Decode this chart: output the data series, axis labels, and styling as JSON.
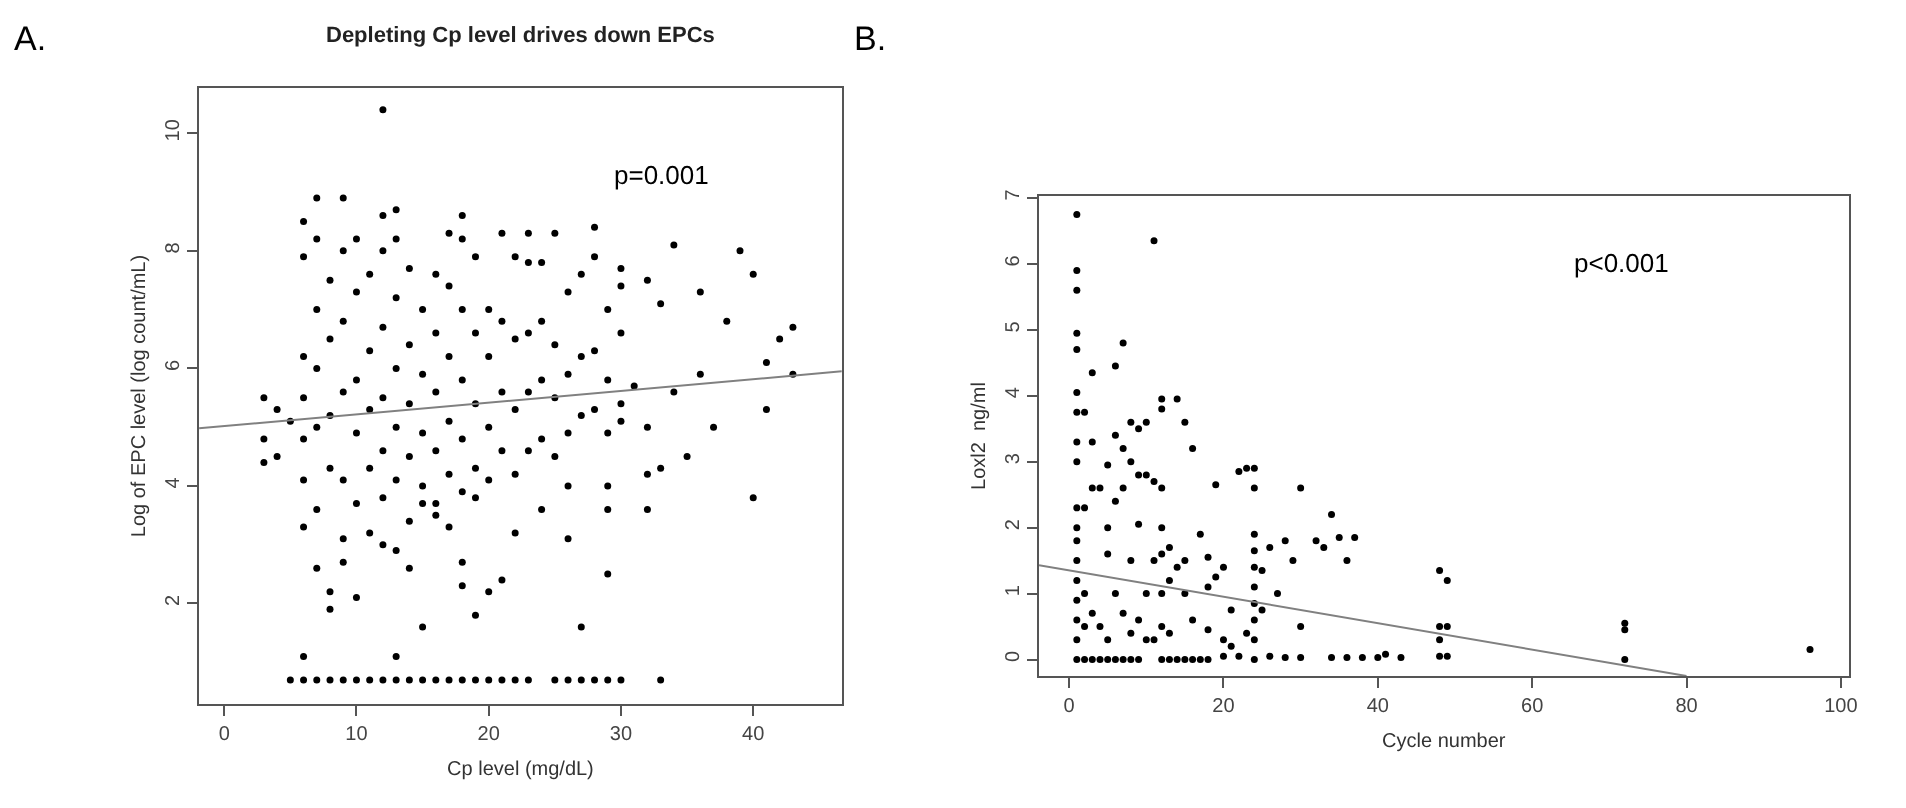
{
  "chart_data": [
    {
      "type": "scatter",
      "title": "Depleting Cp level drives down EPCs",
      "xlabel": "Cp level (mg/dL)",
      "ylabel": "Log of EPC level (log count/mL)",
      "annotations": [
        "A.",
        "p=0.001"
      ],
      "xlim": [
        -1.9,
        46.7
      ],
      "ylim": [
        0.29,
        10.77
      ],
      "xticks": [
        0,
        10,
        20,
        30,
        40
      ],
      "yticks": [
        2,
        4,
        6,
        8,
        10
      ],
      "series": [
        {
          "marker": "circle",
          "color": "#000000",
          "x": [
            5,
            6,
            7,
            8,
            9,
            10,
            11,
            12,
            13,
            14,
            15,
            16,
            17,
            18,
            19,
            20,
            21,
            22,
            23,
            25,
            26,
            27,
            28,
            29,
            30,
            33,
            12,
            6,
            13,
            15,
            27,
            19,
            8,
            8,
            10,
            20,
            21,
            18,
            29,
            7,
            9,
            18,
            14,
            13,
            3,
            3,
            4,
            3,
            4,
            5,
            40,
            32,
            33,
            35,
            37,
            41,
            41,
            43,
            43,
            42,
            40,
            39,
            34,
            38,
            36,
            32,
            33,
            30,
            28,
            9,
            7,
            13,
            18,
            12,
            6,
            25,
            21,
            23,
            36,
            34,
            31,
            32,
            30,
            32,
            26,
            24,
            22,
            29,
            26,
            29,
            6,
            6,
            7,
            9,
            11,
            12,
            14,
            16,
            17,
            19,
            15,
            6,
            6,
            6,
            6,
            7,
            7,
            7,
            7,
            8,
            8,
            8,
            8,
            9,
            9,
            9,
            9,
            10,
            10,
            10,
            10,
            10,
            11,
            11,
            11,
            11,
            12,
            12,
            12,
            12,
            12,
            13,
            13,
            13,
            13,
            13,
            14,
            14,
            14,
            14,
            15,
            15,
            15,
            15,
            16,
            16,
            16,
            16,
            16,
            17,
            17,
            17,
            17,
            17,
            18,
            18,
            18,
            18,
            18,
            19,
            19,
            19,
            19,
            20,
            20,
            20,
            20,
            21,
            21,
            21,
            22,
            22,
            22,
            22,
            23,
            23,
            23,
            23,
            24,
            24,
            24,
            24,
            25,
            25,
            25,
            26,
            26,
            26,
            27,
            27,
            27,
            28,
            28,
            28,
            29,
            29,
            29,
            30,
            30,
            30
          ],
          "values": [
            0.7,
            0.7,
            0.7,
            0.7,
            0.7,
            0.7,
            0.7,
            0.7,
            0.7,
            0.7,
            0.7,
            0.7,
            0.7,
            0.7,
            0.7,
            0.7,
            0.7,
            0.7,
            0.7,
            0.7,
            0.7,
            0.7,
            0.7,
            0.7,
            0.7,
            0.7,
            10.4,
            1.1,
            1.1,
            1.6,
            1.6,
            1.8,
            1.9,
            2.2,
            2.1,
            2.2,
            2.4,
            2.3,
            2.5,
            2.6,
            2.7,
            2.7,
            2.6,
            2.9,
            4.4,
            4.8,
            4.5,
            5.5,
            5.3,
            5.1,
            3.8,
            3.6,
            4.3,
            4.5,
            5.0,
            5.3,
            6.1,
            5.9,
            6.7,
            6.5,
            7.6,
            8.0,
            8.1,
            6.8,
            7.3,
            7.5,
            7.1,
            7.4,
            8.4,
            8.9,
            8.9,
            8.7,
            8.6,
            8.6,
            8.5,
            8.3,
            8.3,
            8.3,
            5.9,
            5.6,
            5.7,
            5.0,
            5.1,
            4.2,
            3.1,
            3.6,
            3.2,
            3.6,
            4.0,
            4.0,
            3.3,
            4.1,
            3.6,
            3.1,
            3.2,
            3.0,
            3.4,
            3.5,
            3.3,
            3.8,
            3.7,
            4.8,
            5.5,
            6.2,
            7.9,
            5.0,
            6.0,
            7.0,
            8.2,
            4.3,
            5.2,
            6.5,
            7.5,
            4.1,
            5.6,
            6.8,
            8.0,
            3.7,
            4.9,
            5.8,
            7.3,
            8.2,
            4.3,
            5.3,
            6.3,
            7.6,
            3.8,
            4.6,
            5.5,
            6.7,
            8.0,
            4.1,
            5.0,
            6.0,
            7.2,
            8.2,
            4.5,
            5.4,
            6.4,
            7.7,
            4.0,
            4.9,
            5.9,
            7.0,
            3.7,
            4.6,
            5.6,
            6.6,
            7.6,
            4.2,
            5.1,
            6.2,
            7.4,
            8.3,
            3.9,
            4.8,
            5.8,
            7.0,
            8.2,
            4.3,
            5.4,
            6.6,
            7.9,
            4.1,
            5.0,
            6.2,
            7.0,
            4.6,
            5.6,
            6.8,
            4.2,
            5.3,
            6.5,
            7.9,
            4.6,
            5.6,
            6.6,
            7.8,
            4.8,
            5.8,
            6.8,
            7.8,
            4.5,
            5.5,
            6.4,
            4.9,
            5.9,
            7.3,
            5.2,
            6.2,
            7.6,
            5.3,
            6.3,
            7.9,
            4.9,
            5.8,
            7.0,
            5.4,
            6.6,
            7.7
          ]
        },
        {
          "type": "line",
          "marker": "none",
          "color": "#808080",
          "x": [
            -1.9,
            46.7
          ],
          "values": [
            4.98,
            5.95
          ]
        }
      ]
    },
    {
      "type": "scatter",
      "xlabel": "Cycle number",
      "ylabel": "Loxl2  ng/ml",
      "annotations": [
        "B.",
        "p<0.001"
      ],
      "xlim": [
        -3.9,
        101
      ],
      "ylim": [
        -0.25,
        7.03
      ],
      "xticks": [
        0,
        20,
        40,
        60,
        80,
        100
      ],
      "yticks": [
        0,
        1,
        2,
        3,
        4,
        5,
        6,
        7
      ],
      "series": [
        {
          "marker": "circle",
          "color": "#000000",
          "x": [
            1,
            1,
            1,
            1,
            1,
            1,
            1,
            1,
            1,
            1,
            1,
            1,
            1,
            1,
            1,
            1,
            1,
            1,
            2,
            2,
            2,
            2,
            2,
            3,
            3,
            3,
            3,
            3,
            4,
            4,
            4,
            5,
            5,
            5,
            5,
            5,
            6,
            6,
            6,
            6,
            6,
            7,
            7,
            7,
            7,
            7,
            8,
            8,
            8,
            8,
            8,
            9,
            9,
            9,
            9,
            9,
            10,
            10,
            10,
            10,
            11,
            11,
            11,
            11,
            12,
            12,
            12,
            12,
            12,
            12,
            12,
            12,
            13,
            13,
            13,
            13,
            14,
            14,
            14,
            15,
            15,
            15,
            15,
            16,
            16,
            16,
            17,
            17,
            18,
            18,
            18,
            18,
            19,
            19,
            20,
            20,
            20,
            21,
            21,
            22,
            22,
            23,
            23,
            24,
            24,
            24,
            24,
            24,
            24,
            24,
            24,
            24,
            24,
            25,
            25,
            26,
            26,
            27,
            28,
            28,
            29,
            30,
            30,
            30,
            32,
            33,
            34,
            34,
            35,
            36,
            36,
            37,
            38,
            40,
            41,
            43,
            48,
            48,
            48,
            48,
            49,
            49,
            49,
            72,
            72,
            72,
            96
          ],
          "values": [
            6.75,
            5.9,
            5.6,
            4.95,
            4.7,
            4.05,
            3.75,
            3.3,
            3.0,
            2.3,
            2.0,
            1.8,
            1.5,
            1.2,
            0.9,
            0.6,
            0.3,
            0,
            3.75,
            2.3,
            1.0,
            0.5,
            0,
            4.35,
            3.3,
            2.6,
            0.7,
            0,
            2.6,
            0.5,
            0,
            2.95,
            2.0,
            1.6,
            0.3,
            0,
            4.45,
            3.4,
            2.4,
            1.0,
            0,
            4.8,
            3.2,
            2.6,
            0.7,
            0,
            3.6,
            3.0,
            1.5,
            0.4,
            0,
            3.5,
            2.8,
            2.05,
            0.6,
            0,
            3.6,
            2.8,
            1.0,
            0.3,
            6.35,
            2.7,
            1.5,
            0.3,
            3.95,
            3.8,
            2.6,
            2.0,
            1.6,
            1.0,
            0.5,
            0,
            1.7,
            1.2,
            0.4,
            0,
            3.95,
            1.4,
            0,
            3.6,
            1.5,
            1.0,
            0,
            3.2,
            0.6,
            0,
            1.9,
            0,
            1.55,
            1.1,
            0.45,
            0,
            2.65,
            1.25,
            1.4,
            0.3,
            0.05,
            0.75,
            0.2,
            2.85,
            0.05,
            2.9,
            0.4,
            2.9,
            2.6,
            1.9,
            1.65,
            1.4,
            1.1,
            0.85,
            0.6,
            0.3,
            0,
            1.35,
            0.75,
            1.7,
            0.05,
            1.0,
            1.8,
            0.03,
            1.5,
            2.6,
            0.5,
            0.03,
            1.8,
            1.7,
            2.2,
            0.03,
            1.85,
            1.5,
            0.03,
            1.85,
            0.03,
            0.03,
            0.08,
            0.03,
            1.35,
            0.5,
            0.3,
            0.05,
            1.2,
            0.5,
            0.05,
            0.55,
            0.45,
            0,
            0.15
          ]
        },
        {
          "type": "line",
          "marker": "none",
          "color": "#808080",
          "x": [
            -3.9,
            80
          ],
          "values": [
            1.43,
            -0.25
          ]
        }
      ]
    }
  ]
}
